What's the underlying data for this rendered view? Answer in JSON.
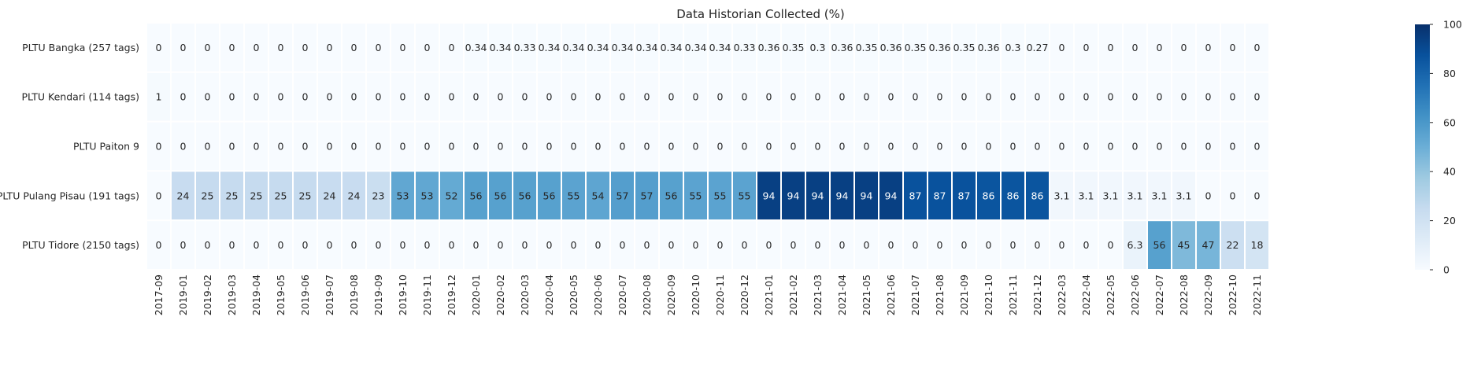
{
  "chart_data": {
    "type": "heatmap",
    "title": "Data Historian Collected (%)",
    "xlabel": "",
    "ylabel": "",
    "x_categories": [
      "2017-09",
      "2019-01",
      "2019-02",
      "2019-03",
      "2019-04",
      "2019-05",
      "2019-06",
      "2019-07",
      "2019-08",
      "2019-09",
      "2019-10",
      "2019-11",
      "2019-12",
      "2020-01",
      "2020-02",
      "2020-03",
      "2020-04",
      "2020-05",
      "2020-06",
      "2020-07",
      "2020-08",
      "2020-09",
      "2020-10",
      "2020-11",
      "2020-12",
      "2021-01",
      "2021-02",
      "2021-03",
      "2021-04",
      "2021-05",
      "2021-06",
      "2021-07",
      "2021-08",
      "2021-09",
      "2021-10",
      "2021-11",
      "2021-12",
      "2022-03",
      "2022-04",
      "2022-05",
      "2022-06",
      "2022-07",
      "2022-08",
      "2022-09",
      "2022-10",
      "2022-11"
    ],
    "y_categories": [
      "PLTU Bangka (257 tags)",
      "PLTU Kendari (114 tags)",
      "PLTU Paiton 9",
      "PLTU Pulang Pisau (191 tags)",
      "PLTU Tidore (2150 tags)"
    ],
    "values": [
      [
        0,
        0,
        0,
        0,
        0,
        0,
        0,
        0,
        0,
        0,
        0,
        0,
        0,
        0.34,
        0.34,
        0.33,
        0.34,
        0.34,
        0.34,
        0.34,
        0.34,
        0.34,
        0.34,
        0.34,
        0.33,
        0.36,
        0.35,
        0.3,
        0.36,
        0.35,
        0.36,
        0.35,
        0.36,
        0.35,
        0.36,
        0.3,
        0.27,
        0,
        0,
        0,
        0,
        0,
        0,
        0,
        0,
        0
      ],
      [
        1,
        0,
        0,
        0,
        0,
        0,
        0,
        0,
        0,
        0,
        0,
        0,
        0,
        0,
        0,
        0,
        0,
        0,
        0,
        0,
        0,
        0,
        0,
        0,
        0,
        0,
        0,
        0,
        0,
        0,
        0,
        0,
        0,
        0,
        0,
        0,
        0,
        0,
        0,
        0,
        0,
        0,
        0,
        0,
        0,
        0
      ],
      [
        0,
        0,
        0,
        0,
        0,
        0,
        0,
        0,
        0,
        0,
        0,
        0,
        0,
        0,
        0,
        0,
        0,
        0,
        0,
        0,
        0,
        0,
        0,
        0,
        0,
        0,
        0,
        0,
        0,
        0,
        0,
        0,
        0,
        0,
        0,
        0,
        0,
        0,
        0,
        0,
        0,
        0,
        0,
        0,
        0,
        0
      ],
      [
        0,
        24,
        25,
        25,
        25,
        25,
        25,
        24,
        24,
        23,
        53,
        53,
        52,
        56,
        56,
        56,
        56,
        55,
        54,
        57,
        57,
        56,
        55,
        55,
        55,
        94,
        94,
        94,
        94,
        94,
        94,
        87,
        87,
        87,
        86,
        86,
        86,
        3.1,
        3.1,
        3.1,
        3.1,
        3.1,
        3.1,
        0,
        0,
        0
      ],
      [
        0,
        0,
        0,
        0,
        0,
        0,
        0,
        0,
        0,
        0,
        0,
        0,
        0,
        0,
        0,
        0,
        0,
        0,
        0,
        0,
        0,
        0,
        0,
        0,
        0,
        0,
        0,
        0,
        0,
        0,
        0,
        0,
        0,
        0,
        0,
        0,
        0,
        0,
        0,
        0,
        6.3,
        56,
        45,
        47,
        22,
        18
      ]
    ],
    "color_range": [
      0,
      100
    ],
    "colormap": "Blues",
    "colorbar_ticks": [
      0,
      20,
      40,
      60,
      80,
      100
    ],
    "annotations": true,
    "colors": {
      "low": "#f7fbff",
      "high": "#08306b",
      "cell_border": "#ffffff",
      "text_dark": "#262626",
      "text_light": "#ffffff"
    }
  }
}
